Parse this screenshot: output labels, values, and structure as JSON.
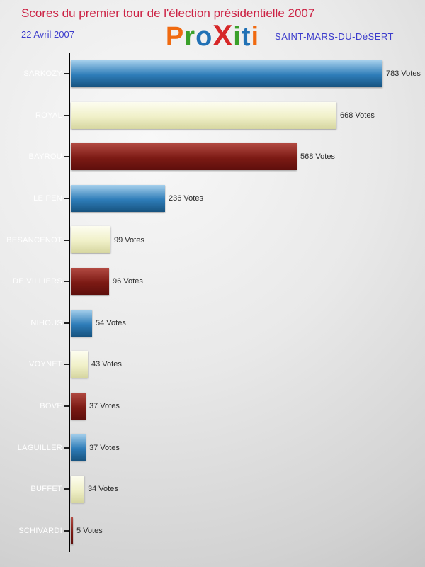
{
  "header": {
    "title": "Scores du premier tour de l'élection présidentielle 2007",
    "date": "22 Avril 2007",
    "city": "SAINT-MARS-DU-DéSERT",
    "logo_letters": [
      {
        "char": "P",
        "color": "#f06a10"
      },
      {
        "char": "r",
        "color": "#3aa02a"
      },
      {
        "char": "o",
        "color": "#2171b5"
      },
      {
        "char": "X",
        "color": "#d62728"
      },
      {
        "char": "i",
        "color": "#3aa02a"
      },
      {
        "char": "t",
        "color": "#2171b5"
      },
      {
        "char": "i",
        "color": "#f06a10"
      }
    ]
  },
  "chart_data": {
    "type": "bar",
    "orientation": "horizontal",
    "title": "Scores du premier tour de l'élection présidentielle 2007",
    "categories": [
      "SARKOZY",
      "ROYAL",
      "BAYROU",
      "LE PEN",
      "BESANCENOT",
      "DE VILLIERS",
      "NIHOUS",
      "VOYNET",
      "BOVE",
      "LAGUILLER",
      "BUFFET",
      "SCHIVARDI"
    ],
    "values": [
      783,
      668,
      568,
      236,
      99,
      96,
      54,
      43,
      37,
      37,
      34,
      5
    ],
    "value_suffix": " Votes",
    "xlim": [
      0,
      783
    ],
    "legend": "none",
    "grid": false,
    "bar_color_cycle": [
      "blue",
      "cream",
      "darkred"
    ]
  },
  "colors": {
    "title": "#cc2244",
    "subtitle_blue": "#3c3ccc",
    "axis": "#000000",
    "value_text": "#2b2b2b",
    "category_text": "#ffffff",
    "bar_palette": {
      "blue": [
        "#a6d0ec",
        "#2e7cb8",
        "#17537f"
      ],
      "cream": [
        "#fdfdf0",
        "#f0f0c8",
        "#d6d6a0"
      ],
      "darkred": [
        "#b24a42",
        "#7c1a14",
        "#5e0f0c"
      ]
    }
  }
}
